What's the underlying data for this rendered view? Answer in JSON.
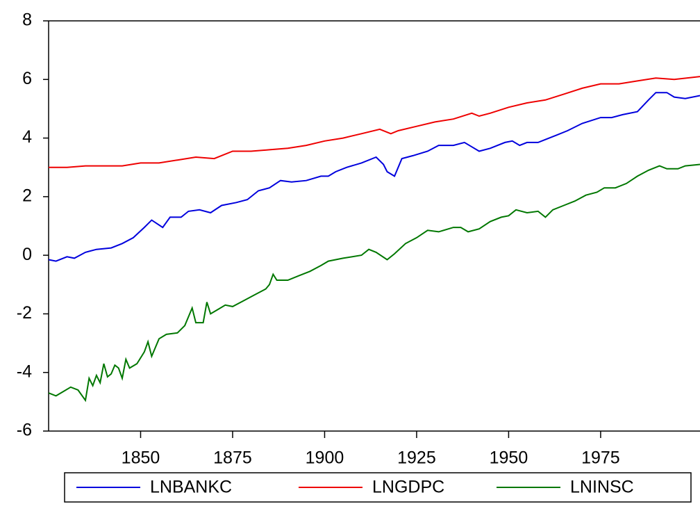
{
  "chart_data": {
    "type": "line",
    "xlim": [
      1825,
      2002
    ],
    "xticks": [
      1850,
      1875,
      1900,
      1925,
      1950,
      1975
    ],
    "ylim": [
      -6,
      8
    ],
    "yticks": [
      8,
      6,
      4,
      2,
      0,
      -2,
      -4,
      -6
    ],
    "legend": "bottom",
    "series": [
      {
        "name": "LNBANKC",
        "color": "#0000dd",
        "x": [
          1825,
          1827,
          1830,
          1832,
          1835,
          1838,
          1842,
          1845,
          1848,
          1851,
          1853,
          1856,
          1858,
          1861,
          1863,
          1866,
          1869,
          1872,
          1876,
          1879,
          1882,
          1885,
          1888,
          1891,
          1895,
          1899,
          1901,
          1903,
          1906,
          1910,
          1914,
          1916,
          1917,
          1919,
          1921,
          1924,
          1928,
          1931,
          1935,
          1938,
          1940,
          1942,
          1945,
          1949,
          1951,
          1953,
          1955,
          1958,
          1960,
          1963,
          1966,
          1970,
          1975,
          1978,
          1981,
          1985,
          1988,
          1990,
          1993,
          1995,
          1998,
          2002
        ],
        "values": [
          -0.15,
          -0.2,
          -0.05,
          -0.1,
          0.1,
          0.2,
          0.25,
          0.4,
          0.6,
          0.95,
          1.2,
          0.95,
          1.3,
          1.3,
          1.5,
          1.55,
          1.45,
          1.7,
          1.8,
          1.9,
          2.2,
          2.3,
          2.55,
          2.5,
          2.55,
          2.7,
          2.7,
          2.85,
          3.0,
          3.15,
          3.35,
          3.1,
          2.85,
          2.7,
          3.3,
          3.4,
          3.55,
          3.75,
          3.75,
          3.85,
          3.7,
          3.55,
          3.65,
          3.85,
          3.9,
          3.75,
          3.85,
          3.85,
          3.95,
          4.1,
          4.25,
          4.5,
          4.7,
          4.7,
          4.8,
          4.9,
          5.3,
          5.55,
          5.55,
          5.4,
          5.35,
          5.45
        ]
      },
      {
        "name": "LNGDPC",
        "color": "#ee0000",
        "x": [
          1825,
          1830,
          1835,
          1840,
          1845,
          1850,
          1855,
          1860,
          1865,
          1870,
          1875,
          1880,
          1885,
          1890,
          1895,
          1900,
          1905,
          1910,
          1915,
          1918,
          1920,
          1925,
          1930,
          1935,
          1940,
          1942,
          1945,
          1950,
          1955,
          1960,
          1965,
          1970,
          1975,
          1980,
          1985,
          1990,
          1995,
          2002
        ],
        "values": [
          3.0,
          3.0,
          3.05,
          3.05,
          3.05,
          3.15,
          3.15,
          3.25,
          3.35,
          3.3,
          3.55,
          3.55,
          3.6,
          3.65,
          3.75,
          3.9,
          4.0,
          4.15,
          4.3,
          4.15,
          4.25,
          4.4,
          4.55,
          4.65,
          4.85,
          4.75,
          4.85,
          5.05,
          5.2,
          5.3,
          5.5,
          5.7,
          5.85,
          5.85,
          5.95,
          6.05,
          6.0,
          6.1
        ]
      },
      {
        "name": "LNINSC",
        "color": "#007700",
        "x": [
          1825,
          1827,
          1829,
          1831,
          1833,
          1835,
          1836,
          1837,
          1838,
          1839,
          1840,
          1841,
          1842,
          1843,
          1844,
          1845,
          1846,
          1847,
          1849,
          1851,
          1852,
          1853,
          1855,
          1857,
          1860,
          1862,
          1864,
          1865,
          1867,
          1868,
          1869,
          1871,
          1873,
          1875,
          1878,
          1881,
          1884,
          1885,
          1886,
          1887,
          1890,
          1893,
          1896,
          1899,
          1901,
          1905,
          1910,
          1912,
          1914,
          1917,
          1919,
          1922,
          1925,
          1928,
          1931,
          1935,
          1937,
          1939,
          1942,
          1945,
          1948,
          1950,
          1952,
          1955,
          1958,
          1960,
          1962,
          1965,
          1968,
          1971,
          1974,
          1976,
          1979,
          1982,
          1985,
          1988,
          1991,
          1993,
          1996,
          1998,
          2002
        ],
        "values": [
          -4.7,
          -4.8,
          -4.65,
          -4.5,
          -4.6,
          -4.95,
          -4.2,
          -4.45,
          -4.1,
          -4.35,
          -3.7,
          -4.15,
          -4.05,
          -3.75,
          -3.85,
          -4.2,
          -3.55,
          -3.85,
          -3.7,
          -3.3,
          -2.95,
          -3.45,
          -2.85,
          -2.7,
          -2.65,
          -2.4,
          -1.8,
          -2.3,
          -2.3,
          -1.6,
          -2.0,
          -1.85,
          -1.7,
          -1.75,
          -1.55,
          -1.35,
          -1.15,
          -1.0,
          -0.65,
          -0.85,
          -0.85,
          -0.7,
          -0.55,
          -0.35,
          -0.2,
          -0.1,
          0.0,
          0.2,
          0.1,
          -0.15,
          0.05,
          0.4,
          0.6,
          0.85,
          0.8,
          0.95,
          0.95,
          0.8,
          0.9,
          1.15,
          1.3,
          1.35,
          1.55,
          1.45,
          1.5,
          1.3,
          1.55,
          1.7,
          1.85,
          2.05,
          2.15,
          2.3,
          2.3,
          2.45,
          2.7,
          2.9,
          3.05,
          2.95,
          2.95,
          3.05,
          3.1
        ]
      }
    ]
  }
}
